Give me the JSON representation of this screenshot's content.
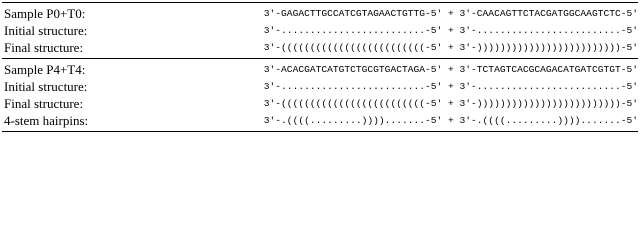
{
  "table": {
    "sections": [
      {
        "rows": [
          {
            "label": "Sample P0+T0:",
            "sequence": "3′-GAGACTTGCCATCGTAGAACTGTTG-5′ + 3′-CAACAGTTCTACGATGGCAAGTCTC-5′"
          },
          {
            "label": "Initial structure:",
            "sequence": "3′-.........................-5′ + 3′-.........................-5′"
          },
          {
            "label": "Final structure:",
            "sequence": "3′-(((((((((((((((((((((((((-5′ + 3′-)))))))))))))))))))))))))-5′"
          }
        ]
      },
      {
        "rows": [
          {
            "label": "Sample P4+T4:",
            "sequence": "3′-ACACGATCATGTCTGCGTGACTAGA-5′ + 3′-TCTAGTCACGCAGACATGATCGTGT-5′"
          },
          {
            "label": "Initial structure:",
            "sequence": "3′-.........................-5′ + 3′-.........................-5′"
          },
          {
            "label": "Final structure:",
            "sequence": "3′-(((((((((((((((((((((((((-5′ + 3′-)))))))))))))))))))))))))-5′"
          },
          {
            "label": "4-stem hairpins:",
            "sequence": "3′-.((((.........)))).......-5′ + 3′-.((((.........)))).......-5′"
          }
        ]
      }
    ]
  }
}
